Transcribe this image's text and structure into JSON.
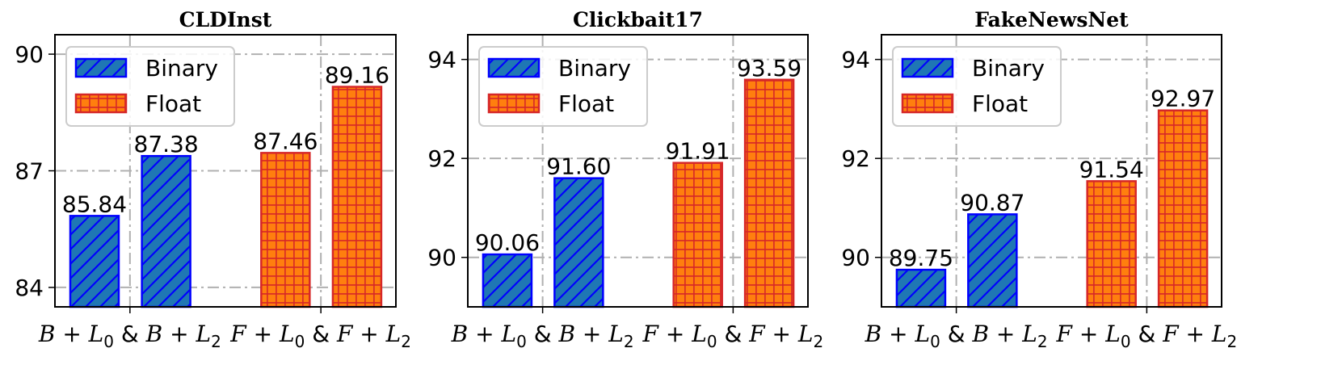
{
  "colors": {
    "binary_fill": "#1f77b4",
    "binary_edge": "#0000ff",
    "float_fill": "#ff7f0e",
    "float_edge": "#d62728",
    "grid": "#b0b0b0"
  },
  "legend": [
    {
      "label": "Binary",
      "pattern": "hatch-diagonal"
    },
    {
      "label": "Float",
      "pattern": "hatch-grid"
    }
  ],
  "chart_data": [
    {
      "type": "bar",
      "title": "CLDInst",
      "categories": [
        "B+L0",
        "B+L2",
        "F+L0",
        "F+L2"
      ],
      "category_kind": [
        "Binary",
        "Binary",
        "Float",
        "Float"
      ],
      "values": [
        85.84,
        87.38,
        87.46,
        89.16
      ],
      "value_labels": [
        "85.84",
        "87.38",
        "87.46",
        "89.16"
      ],
      "ylim": [
        83.5,
        90.5
      ],
      "yticks": [
        84,
        87,
        90
      ],
      "xticks": [
        {
          "pre": "B + L",
          "sub": "0",
          "post": " & ",
          "pre2": "B + L",
          "sub2": "2"
        },
        {
          "pre": "F + L",
          "sub": "0",
          "post": " & ",
          "pre2": "F + L",
          "sub2": "2"
        }
      ],
      "grid": true,
      "legend_position": "top-left"
    },
    {
      "type": "bar",
      "title": "Clickbait17",
      "categories": [
        "B+L0",
        "B+L2",
        "F+L0",
        "F+L2"
      ],
      "category_kind": [
        "Binary",
        "Binary",
        "Float",
        "Float"
      ],
      "values": [
        90.06,
        91.6,
        91.91,
        93.59
      ],
      "value_labels": [
        "90.06",
        "91.60",
        "91.91",
        "93.59"
      ],
      "ylim": [
        89.0,
        94.5
      ],
      "yticks": [
        90,
        92,
        94
      ],
      "xticks": [
        {
          "pre": "B + L",
          "sub": "0",
          "post": " & ",
          "pre2": "B + L",
          "sub2": "2"
        },
        {
          "pre": "F + L",
          "sub": "0",
          "post": " & ",
          "pre2": "F + L",
          "sub2": "2"
        }
      ],
      "grid": true,
      "legend_position": "top-left"
    },
    {
      "type": "bar",
      "title": "FakeNewsNet",
      "categories": [
        "B+L0",
        "B+L2",
        "F+L0",
        "F+L2"
      ],
      "category_kind": [
        "Binary",
        "Binary",
        "Float",
        "Float"
      ],
      "values": [
        89.75,
        90.87,
        91.54,
        92.97
      ],
      "value_labels": [
        "89.75",
        "90.87",
        "91.54",
        "92.97"
      ],
      "ylim": [
        89.0,
        94.5
      ],
      "yticks": [
        90,
        92,
        94
      ],
      "xticks": [
        {
          "pre": "B + L",
          "sub": "0",
          "post": " & ",
          "pre2": "B + L",
          "sub2": "2"
        },
        {
          "pre": "F + L",
          "sub": "0",
          "post": " & ",
          "pre2": "F + L",
          "sub2": "2"
        }
      ],
      "grid": true,
      "legend_position": "top-left"
    }
  ]
}
